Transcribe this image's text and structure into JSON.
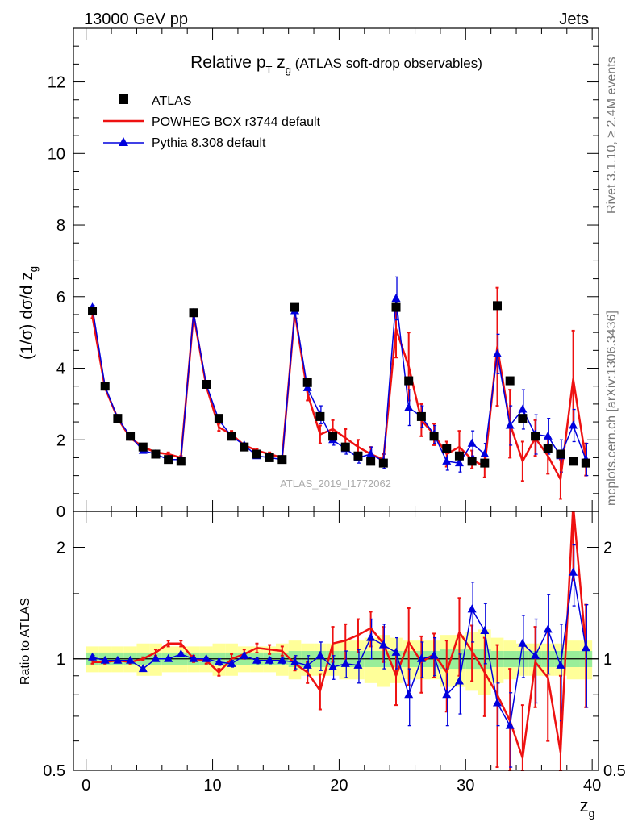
{
  "header": {
    "left": "13000 GeV pp",
    "right": "Jets"
  },
  "side_labels": {
    "rivet": "Rivet 3.1.10, ≥ 2.4M events",
    "mcplots": "mcplots.cern.ch [arXiv:1306.3436]"
  },
  "watermark": "ATLAS_2019_I1772062",
  "colors": {
    "atlas": "#000000",
    "powheg": "#ee1111",
    "pythia": "#0000dd",
    "band_inner": "#99ee99",
    "band_outer": "#ffff99"
  },
  "chart_data": [
    {
      "type": "line",
      "panel": "main",
      "title_parts": {
        "pre": "Relative p",
        "sub1": "T",
        "mid": " z",
        "sub2": "g",
        "post": " (ATLAS soft-drop observables)"
      },
      "ylabel_parts": {
        "pre": "(1/σ) dσ/d z",
        "sub": "g"
      },
      "xlim": [
        -1,
        40.5
      ],
      "ylim": [
        0,
        13.5
      ],
      "yticks": [
        0,
        2,
        4,
        6,
        8,
        10,
        12
      ],
      "ytick_labels": [
        "0",
        "2",
        "4",
        "6",
        "8",
        "10",
        "12"
      ],
      "x": [
        0.5,
        1.5,
        2.5,
        3.5,
        4.5,
        5.5,
        6.5,
        7.5,
        8.5,
        9.5,
        10.5,
        11.5,
        12.5,
        13.5,
        14.5,
        15.5,
        16.5,
        17.5,
        18.5,
        19.5,
        20.5,
        21.5,
        22.5,
        23.5,
        24.5,
        25.5,
        26.5,
        27.5,
        28.5,
        29.5,
        30.5,
        31.5,
        32.5,
        33.5,
        34.5,
        35.5,
        36.5,
        37.5,
        38.5,
        39.5
      ],
      "series": [
        {
          "name": "ATLAS",
          "marker": "square",
          "values": [
            5.6,
            3.5,
            2.6,
            2.1,
            1.8,
            1.6,
            1.45,
            1.4,
            5.55,
            3.55,
            2.6,
            2.1,
            1.8,
            1.6,
            1.5,
            1.45,
            5.7,
            3.6,
            2.65,
            2.1,
            1.8,
            1.55,
            1.4,
            1.35,
            5.7,
            3.65,
            2.65,
            2.1,
            1.75,
            1.55,
            1.4,
            1.35,
            5.75,
            3.65,
            2.6,
            2.1,
            1.75,
            1.6,
            1.4,
            1.35
          ]
        },
        {
          "name": "POWHEG BOX r3744 default",
          "marker": "line",
          "values": [
            5.45,
            3.45,
            2.6,
            2.05,
            1.8,
            1.65,
            1.6,
            1.5,
            5.5,
            3.5,
            2.35,
            2.15,
            1.85,
            1.7,
            1.6,
            1.5,
            5.55,
            3.3,
            2.15,
            2.3,
            2.05,
            1.8,
            1.6,
            1.45,
            5.1,
            4.05,
            2.55,
            2.15,
            1.6,
            1.8,
            1.45,
            1.25,
            4.6,
            2.45,
            1.4,
            2.05,
            1.55,
            0.9,
            3.7,
            1.45
          ],
          "errors": [
            0.05,
            0.05,
            0.05,
            0.05,
            0.05,
            0.05,
            0.05,
            0.05,
            0.05,
            0.05,
            0.1,
            0.1,
            0.05,
            0.05,
            0.05,
            0.05,
            0.15,
            0.2,
            0.25,
            0.25,
            0.25,
            0.2,
            0.2,
            0.15,
            0.8,
            0.95,
            0.45,
            0.3,
            0.35,
            0.45,
            0.25,
            0.3,
            1.65,
            0.95,
            0.55,
            0.5,
            0.5,
            0.55,
            1.35,
            0.45
          ]
        },
        {
          "name": "Pythia 8.308 default",
          "marker": "triangle",
          "values": [
            5.7,
            3.5,
            2.6,
            2.1,
            1.7,
            1.6,
            1.45,
            1.45,
            5.55,
            3.55,
            2.55,
            2.1,
            1.85,
            1.55,
            1.5,
            1.45,
            5.6,
            3.45,
            2.7,
            2.0,
            1.75,
            1.5,
            1.6,
            1.4,
            5.95,
            2.9,
            2.65,
            2.15,
            1.4,
            1.35,
            1.9,
            1.6,
            4.4,
            2.4,
            2.85,
            2.15,
            2.1,
            1.55,
            2.4,
            1.45
          ],
          "errors": [
            0.05,
            0.05,
            0.05,
            0.05,
            0.05,
            0.05,
            0.05,
            0.05,
            0.05,
            0.05,
            0.05,
            0.05,
            0.05,
            0.05,
            0.05,
            0.05,
            0.2,
            0.2,
            0.25,
            0.15,
            0.15,
            0.15,
            0.2,
            0.2,
            0.6,
            0.5,
            0.3,
            0.25,
            0.25,
            0.25,
            0.35,
            0.3,
            0.55,
            0.55,
            0.55,
            0.55,
            0.5,
            0.45,
            0.45,
            0.45
          ]
        }
      ],
      "legend_position": "top-left"
    },
    {
      "type": "line",
      "panel": "ratio",
      "ylabel": "Ratio to ATLAS",
      "xlabel_parts": {
        "pre": "z",
        "sub": "g"
      },
      "xlim": [
        -1,
        40.5
      ],
      "ylim": [
        0.5,
        2.5
      ],
      "log_y": true,
      "yticks": [
        0.5,
        1,
        2
      ],
      "ytick_labels": [
        "0.5",
        "1",
        "2"
      ],
      "xticks": [
        0,
        10,
        20,
        30,
        40
      ],
      "xtick_labels": [
        "0",
        "10",
        "20",
        "30",
        "40"
      ],
      "reference": 1,
      "x": [
        0.5,
        1.5,
        2.5,
        3.5,
        4.5,
        5.5,
        6.5,
        7.5,
        8.5,
        9.5,
        10.5,
        11.5,
        12.5,
        13.5,
        14.5,
        15.5,
        16.5,
        17.5,
        18.5,
        19.5,
        20.5,
        21.5,
        22.5,
        23.5,
        24.5,
        25.5,
        26.5,
        27.5,
        28.5,
        29.5,
        30.5,
        31.5,
        32.5,
        33.5,
        34.5,
        35.5,
        36.5,
        37.5,
        38.5,
        39.5
      ],
      "band_inner": [
        0.04,
        0.04,
        0.04,
        0.04,
        0.04,
        0.04,
        0.04,
        0.04,
        0.04,
        0.04,
        0.04,
        0.04,
        0.04,
        0.04,
        0.04,
        0.04,
        0.05,
        0.05,
        0.05,
        0.05,
        0.05,
        0.05,
        0.05,
        0.05,
        0.05,
        0.05,
        0.05,
        0.05,
        0.06,
        0.06,
        0.06,
        0.06,
        0.05,
        0.05,
        0.05,
        0.05,
        0.05,
        0.05,
        0.05,
        0.05
      ],
      "band_outer": [
        0.08,
        0.08,
        0.08,
        0.08,
        0.1,
        0.1,
        0.08,
        0.08,
        0.08,
        0.08,
        0.1,
        0.1,
        0.08,
        0.08,
        0.08,
        0.1,
        0.12,
        0.1,
        0.1,
        0.1,
        0.12,
        0.12,
        0.14,
        0.16,
        0.14,
        0.12,
        0.12,
        0.12,
        0.16,
        0.16,
        0.18,
        0.2,
        0.14,
        0.12,
        0.1,
        0.1,
        0.1,
        0.1,
        0.12,
        0.12
      ],
      "series": [
        {
          "name": "POWHEG BOX r3744 default",
          "values": [
            0.98,
            0.98,
            0.99,
            0.98,
            1.0,
            1.04,
            1.1,
            1.1,
            1.0,
            0.99,
            0.92,
            1.0,
            1.03,
            1.07,
            1.06,
            1.05,
            0.97,
            0.92,
            0.82,
            1.1,
            1.12,
            1.16,
            1.21,
            1.1,
            0.9,
            1.11,
            0.98,
            1.03,
            0.92,
            1.18,
            1.05,
            0.92,
            0.8,
            0.68,
            0.54,
            0.98,
            0.89,
            0.56,
            2.6,
            1.07
          ],
          "errors": [
            0.01,
            0.01,
            0.01,
            0.01,
            0.01,
            0.02,
            0.02,
            0.02,
            0.02,
            0.02,
            0.02,
            0.03,
            0.03,
            0.03,
            0.03,
            0.03,
            0.04,
            0.06,
            0.09,
            0.12,
            0.12,
            0.12,
            0.13,
            0.12,
            0.15,
            0.26,
            0.17,
            0.14,
            0.2,
            0.28,
            0.18,
            0.22,
            0.29,
            0.26,
            0.21,
            0.24,
            0.29,
            0.34,
            0.97,
            0.33
          ]
        },
        {
          "name": "Pythia 8.308 default",
          "values": [
            1.01,
            0.99,
            0.99,
            0.99,
            0.94,
            1.0,
            1.0,
            1.03,
            1.0,
            1.0,
            0.98,
            0.97,
            1.02,
            0.99,
            0.99,
            0.99,
            0.98,
            0.96,
            1.02,
            0.95,
            0.97,
            0.96,
            1.14,
            1.09,
            1.04,
            0.8,
            1.0,
            1.02,
            0.8,
            0.87,
            1.36,
            1.19,
            0.76,
            0.66,
            1.1,
            1.02,
            1.2,
            0.96,
            1.71,
            1.07
          ],
          "errors": [
            0.01,
            0.01,
            0.01,
            0.01,
            0.01,
            0.01,
            0.01,
            0.01,
            0.01,
            0.01,
            0.02,
            0.02,
            0.02,
            0.02,
            0.02,
            0.02,
            0.04,
            0.06,
            0.09,
            0.07,
            0.08,
            0.1,
            0.14,
            0.15,
            0.1,
            0.14,
            0.11,
            0.12,
            0.14,
            0.16,
            0.25,
            0.22,
            0.1,
            0.15,
            0.21,
            0.26,
            0.29,
            0.28,
            0.32,
            0.33
          ]
        }
      ]
    }
  ]
}
